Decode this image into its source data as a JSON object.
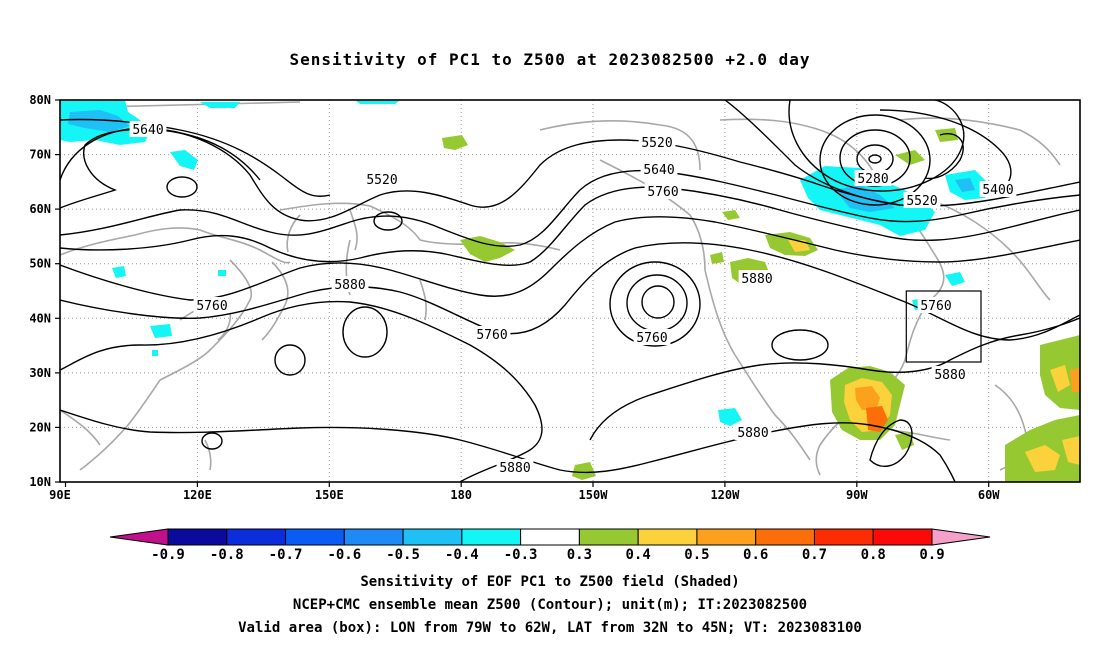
{
  "title": "Sensitivity of PC1 to Z500 at 2023082500 +2.0 day",
  "lat_labels": [
    "80N",
    "70N",
    "60N",
    "50N",
    "40N",
    "30N",
    "20N",
    "10N"
  ],
  "lon_labels": [
    "90E",
    "120E",
    "150E",
    "180",
    "150W",
    "120W",
    "90W",
    "60W"
  ],
  "contour_labels": [
    "5640",
    "5520",
    "5520",
    "5640",
    "5760",
    "5280",
    "5520",
    "5400",
    "5760",
    "5880",
    "5880",
    "5760",
    "5760",
    "5760",
    "5880",
    "5880",
    "5880"
  ],
  "colorbar": {
    "labels": [
      "-0.9",
      "-0.8",
      "-0.7",
      "-0.6",
      "-0.5",
      "-0.4",
      "-0.3",
      "0.3",
      "0.4",
      "0.5",
      "0.6",
      "0.7",
      "0.8",
      "0.9"
    ],
    "colors": [
      "#c0108c",
      "#0a0a9c",
      "#0b2ddc",
      "#0b5cf4",
      "#1e8af5",
      "#1ec0f5",
      "#14f5f5",
      "#ffffff",
      "#96c832",
      "#fcd23c",
      "#fca01e",
      "#fc6e0a",
      "#fc2d05",
      "#fc0a0a",
      "#f5a0c8"
    ]
  },
  "captions": [
    "Sensitivity of EOF PC1 to Z500 field (Shaded)",
    "NCEP+CMC ensemble mean Z500 (Contour); unit(m); IT:2023082500",
    "Valid area (box): LON from 79W to 62W, LAT from 32N to 45N; VT: 2023083100"
  ],
  "valid_box": {
    "lon_from": "79W",
    "lon_to": "62W",
    "lat_from": "32N",
    "lat_to": "45N"
  }
}
